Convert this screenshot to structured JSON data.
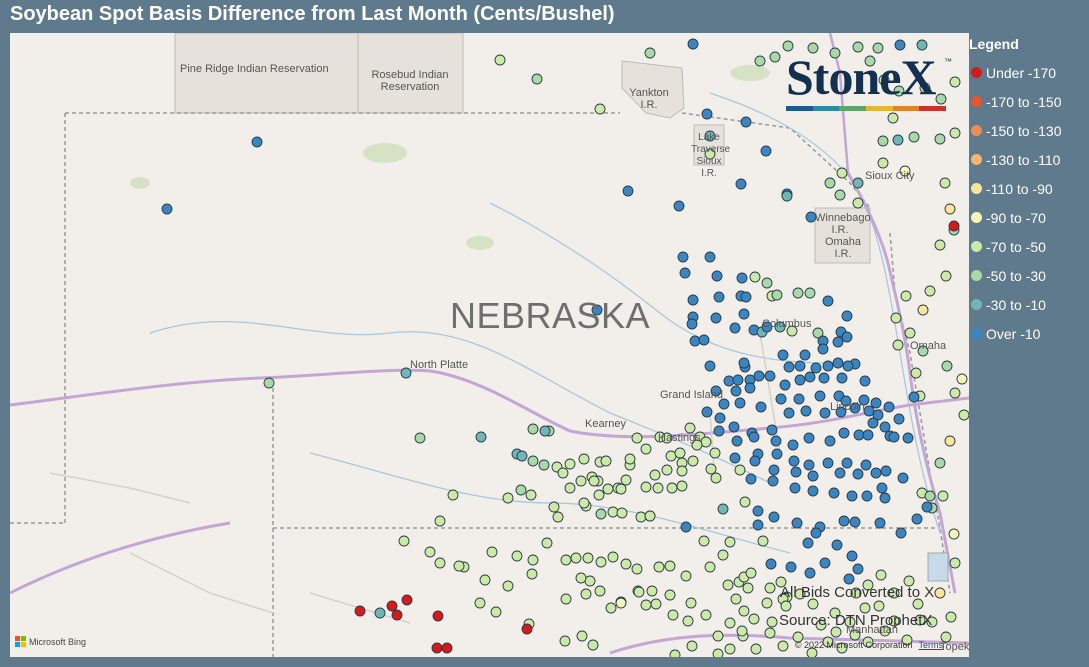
{
  "title": "Soybean Spot Basis Difference from Last Month (Cents/Bushel)",
  "map": {
    "state_label": "NEBRASKA",
    "places": [
      {
        "name": "Pine Ridge Indian Reservation"
      },
      {
        "name": "Rosebud Indian Reservation"
      },
      {
        "name": "Yankton I.R."
      },
      {
        "name": "Lake Traverse / Sisseton I.R.",
        "display": "Lake Traverse Sioux I.R."
      },
      {
        "name": "Sioux City"
      },
      {
        "name": "Winnebago I.R."
      },
      {
        "name": "Omaha I.R."
      },
      {
        "name": "Columbus"
      },
      {
        "name": "Omaha"
      },
      {
        "name": "North Platte"
      },
      {
        "name": "Grand Island"
      },
      {
        "name": "Kearney"
      },
      {
        "name": "Hastings"
      },
      {
        "name": "Lincoln"
      },
      {
        "name": "Manhattan"
      },
      {
        "name": "Topeka"
      }
    ]
  },
  "brand": {
    "name": "StoneX",
    "trademark": "™",
    "bar_colors": [
      "#1f5a8c",
      "#2e8ba6",
      "#5fa56a",
      "#e3b83a",
      "#e0822e",
      "#c8342c"
    ]
  },
  "notes": {
    "converted": "All Bids Converted to X",
    "source": "Source: DTN ProphetX"
  },
  "attribution": {
    "copyright": "© 2022 Microsoft Corporation",
    "terms": "Terms",
    "provider": "Microsoft Bing"
  },
  "legend": {
    "title": "Legend",
    "items": [
      {
        "label": "Under -170",
        "color": "#d7191c"
      },
      {
        "label": "-170 to -150",
        "color": "#e4572f"
      },
      {
        "label": "-150 to -130",
        "color": "#f08c4d"
      },
      {
        "label": "-130 to -110",
        "color": "#f8b56d"
      },
      {
        "label": "-110 to -90",
        "color": "#fde598"
      },
      {
        "label": "-90 to -70",
        "color": "#f3f8b8"
      },
      {
        "label": "-70 to -50",
        "color": "#cde9a8"
      },
      {
        "label": "-50 to -30",
        "color": "#a8d9a6"
      },
      {
        "label": "-30 to -10",
        "color": "#72b5b5"
      },
      {
        "label": "Over -10",
        "color": "#3b86c2"
      }
    ]
  },
  "chart_data": {
    "type": "scatter",
    "title": "Soybean Spot Basis Difference from Last Month (Cents/Bushel)",
    "xlabel": "",
    "ylabel": "",
    "value_unit": "cents/bushel (difference class)",
    "classes": [
      "Under -170",
      "-170 to -150",
      "-150 to -130",
      "-130 to -110",
      "-110 to -90",
      "-90 to -70",
      "-70 to -50",
      "-50 to -30",
      "-30 to -10",
      "Over -10"
    ],
    "class_counts_estimated": {
      "Under -170": 13,
      "-110 to -90": 10,
      "-90 to -70": 11,
      "-70 to -50": 60,
      "-50 to -30": 40,
      "-30 to -10": 15,
      "Over -10": 120
    },
    "legend_placement": "right",
    "grid": false
  }
}
